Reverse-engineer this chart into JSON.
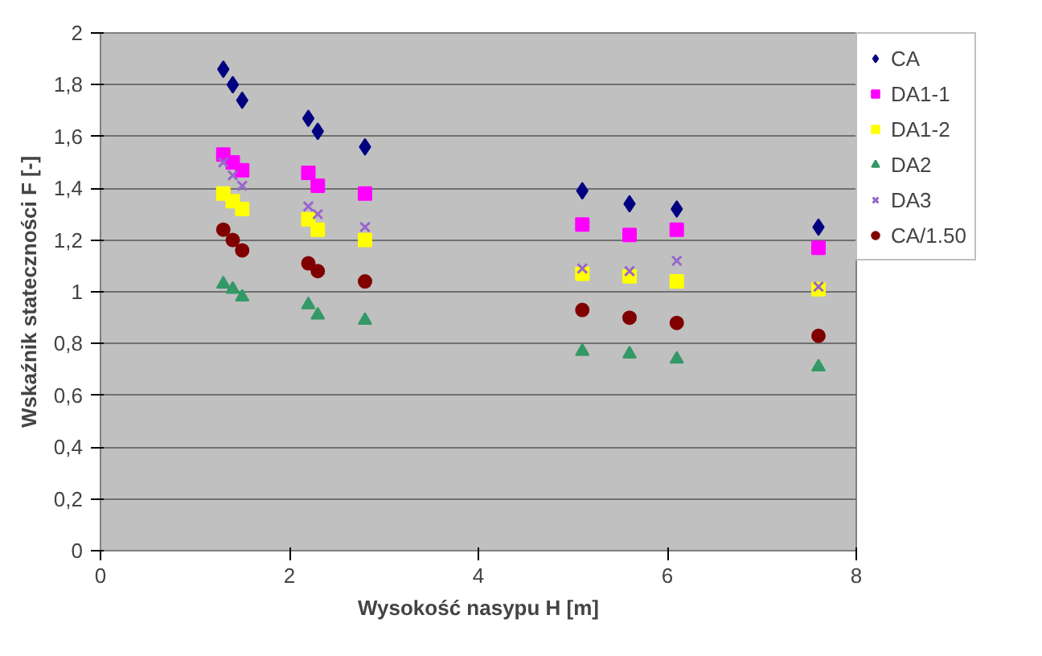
{
  "chart_data": {
    "type": "scatter",
    "xlabel": "Wysokość nasypu H [m]",
    "ylabel": "Wskaźnik stateczności F [-]",
    "x": [
      1.3,
      1.4,
      1.5,
      2.2,
      2.3,
      2.8,
      5.1,
      5.6,
      6.1,
      7.6
    ],
    "xlim": [
      0,
      8
    ],
    "xticks": [
      0,
      2,
      4,
      6,
      8
    ],
    "ylim": [
      0,
      2
    ],
    "yticks": [
      0,
      {
        "value": 0.2,
        "label": "0,2"
      },
      {
        "value": 0.4,
        "label": "0,4"
      },
      {
        "value": 0.6,
        "label": "0,6"
      },
      {
        "value": 0.8,
        "label": "0,8"
      },
      1,
      {
        "value": 1.2,
        "label": "1,2"
      },
      {
        "value": 1.4,
        "label": "1,4"
      },
      {
        "value": 1.6,
        "label": "1,6"
      },
      {
        "value": 1.8,
        "label": "1,8"
      },
      2
    ],
    "grid": "y",
    "legend": "right",
    "series": [
      {
        "name": "CA",
        "color": "#000080",
        "marker": "diamond",
        "values": [
          1.86,
          1.8,
          1.74,
          1.67,
          1.62,
          1.56,
          1.39,
          1.34,
          1.32,
          1.25
        ]
      },
      {
        "name": "DA1-1",
        "color": "#ff00ff",
        "marker": "square",
        "values": [
          1.53,
          1.5,
          1.47,
          1.46,
          1.41,
          1.38,
          1.26,
          1.22,
          1.24,
          1.17
        ]
      },
      {
        "name": "DA1-2",
        "color": "#ffff00",
        "marker": "square",
        "values": [
          1.38,
          1.35,
          1.32,
          1.28,
          1.24,
          1.2,
          1.07,
          1.06,
          1.04,
          1.01
        ]
      },
      {
        "name": "DA2",
        "color": "#339966",
        "marker": "triangle",
        "values": [
          1.03,
          1.01,
          0.98,
          0.95,
          0.91,
          0.89,
          0.77,
          0.76,
          0.74,
          0.71
        ]
      },
      {
        "name": "DA3",
        "color": "#9966cc",
        "marker": "cross",
        "values": [
          1.5,
          1.45,
          1.41,
          1.33,
          1.3,
          1.25,
          1.09,
          1.08,
          1.12,
          1.02
        ]
      },
      {
        "name": "CA/1.50",
        "color": "#800000",
        "marker": "circle",
        "values": [
          1.24,
          1.2,
          1.16,
          1.11,
          1.08,
          1.04,
          0.93,
          0.9,
          0.88,
          0.83
        ]
      }
    ]
  }
}
